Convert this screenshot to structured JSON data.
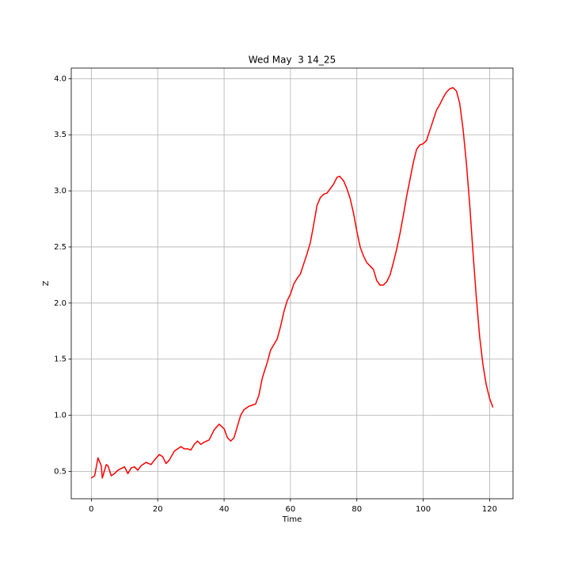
{
  "chart_data": {
    "type": "line",
    "title": "Wed May  3 14_25",
    "x_label": "Time",
    "y_label": "Z",
    "x": [
      0,
      1,
      2,
      3,
      3.3,
      4.5,
      5,
      6,
      7,
      8,
      10,
      11,
      12,
      13,
      14,
      15,
      16.5,
      18,
      19,
      20.5,
      21.5,
      22.5,
      23.5,
      25,
      27,
      28,
      29,
      30,
      31,
      32,
      33,
      34,
      35.5,
      37,
      38.5,
      40,
      41,
      42,
      43,
      44,
      45,
      46,
      47.5,
      48.5,
      49.5,
      50.5,
      51.5,
      53,
      54,
      55,
      56,
      57,
      58,
      59,
      60,
      61,
      62,
      63,
      64,
      65,
      66,
      67,
      68,
      69,
      70,
      71,
      72,
      73,
      74,
      74.8,
      76,
      77,
      78,
      79,
      80,
      81,
      82,
      83,
      84,
      85,
      86,
      87,
      88,
      89,
      90,
      91,
      92,
      93,
      94,
      95,
      96,
      97,
      98,
      99,
      100,
      101,
      102,
      103,
      104,
      105,
      106,
      107,
      108,
      109,
      110,
      111,
      112,
      113,
      114,
      115,
      116,
      117,
      118,
      119,
      120,
      121
    ],
    "series": [
      {
        "name": "Z",
        "color": "#ff0000",
        "values": [
          0.44,
          0.46,
          0.62,
          0.55,
          0.44,
          0.56,
          0.55,
          0.46,
          0.48,
          0.51,
          0.54,
          0.48,
          0.53,
          0.54,
          0.51,
          0.55,
          0.58,
          0.56,
          0.6,
          0.65,
          0.63,
          0.57,
          0.6,
          0.68,
          0.72,
          0.7,
          0.7,
          0.69,
          0.74,
          0.77,
          0.74,
          0.76,
          0.78,
          0.87,
          0.92,
          0.88,
          0.8,
          0.77,
          0.8,
          0.9,
          1.0,
          1.05,
          1.08,
          1.09,
          1.1,
          1.18,
          1.33,
          1.47,
          1.58,
          1.63,
          1.68,
          1.79,
          1.92,
          2.02,
          2.08,
          2.17,
          2.22,
          2.26,
          2.35,
          2.44,
          2.54,
          2.7,
          2.87,
          2.94,
          2.97,
          2.98,
          3.02,
          3.06,
          3.12,
          3.13,
          3.09,
          3.02,
          2.93,
          2.8,
          2.64,
          2.5,
          2.42,
          2.36,
          2.33,
          2.3,
          2.2,
          2.16,
          2.16,
          2.19,
          2.25,
          2.36,
          2.48,
          2.62,
          2.78,
          2.95,
          3.1,
          3.25,
          3.37,
          3.41,
          3.42,
          3.45,
          3.54,
          3.63,
          3.72,
          3.77,
          3.83,
          3.88,
          3.91,
          3.92,
          3.89,
          3.78,
          3.55,
          3.25,
          2.88,
          2.45,
          2.05,
          1.7,
          1.45,
          1.27,
          1.15,
          1.07
        ]
      }
    ],
    "xlim": [
      -6.05,
      127.05
    ],
    "ylim": [
      0.2555,
      4.0945
    ],
    "xticks": [
      0,
      20,
      40,
      60,
      80,
      100,
      120
    ],
    "yticks": [
      {
        "value": 0.5,
        "label": "0.5"
      },
      {
        "value": 1.0,
        "label": "1.0"
      },
      {
        "value": 1.5,
        "label": "1.5"
      },
      {
        "value": 2.0,
        "label": "2.0"
      },
      {
        "value": 2.5,
        "label": "2.5"
      },
      {
        "value": 3.0,
        "label": "3.0"
      },
      {
        "value": 3.5,
        "label": "3.5"
      },
      {
        "value": 4.0,
        "label": "4.0"
      }
    ],
    "grid": true
  }
}
